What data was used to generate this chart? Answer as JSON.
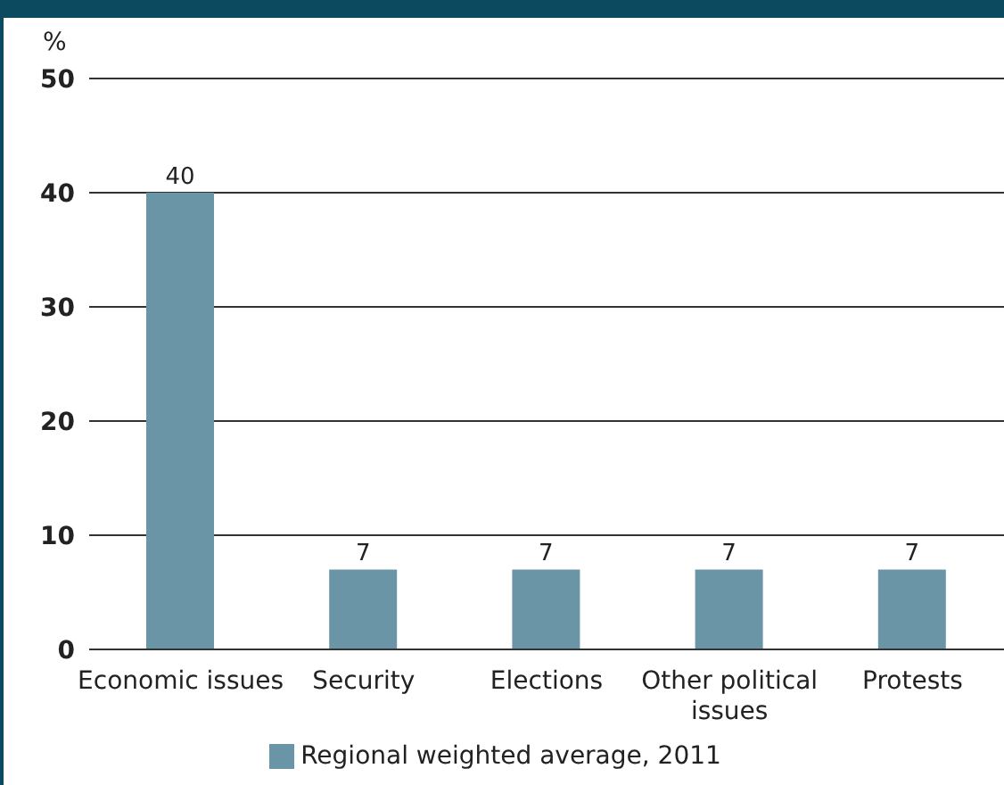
{
  "chart_data": {
    "type": "bar",
    "ylabel": "%",
    "categories": [
      "Economic issues",
      "Security",
      "Elections",
      "Other political issues",
      "Protests"
    ],
    "series": [
      {
        "name": "Regional weighted average, 2011",
        "color": "#6a95a6",
        "values": [
          40,
          7,
          7,
          7,
          7
        ]
      }
    ],
    "ylim": [
      0,
      50
    ],
    "yticks": [
      0,
      10,
      20,
      30,
      40,
      50
    ],
    "grid": "y",
    "legend": "bottom",
    "data_labels": true
  }
}
